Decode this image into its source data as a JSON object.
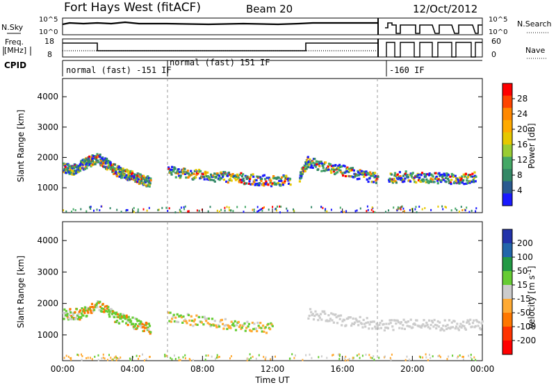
{
  "header": {
    "station": "Fort Hays West (fitACF)",
    "beam": "Beam 20",
    "date": "12/Oct/2012"
  },
  "top_panels": {
    "nsky_label": "N.Sky",
    "nsearch_label": "N.Search",
    "nsky_ticks": [
      "10^5",
      "10^0"
    ],
    "nsky_right_ticks": [
      "10^5",
      "10^0"
    ],
    "freq_label_1": "Freq.",
    "freq_label_2": "[MHz]",
    "freq_ticks": [
      "18",
      "8"
    ],
    "nave_label": "Nave",
    "nave_ticks": [
      "60",
      "0"
    ],
    "cpid_label": "CPID",
    "cpid_segments": [
      {
        "label": "normal (fast) -151 IF",
        "start": 0,
        "end": 6
      },
      {
        "label": "normal (fast) 151 IF",
        "start": 6,
        "end": 18
      },
      {
        "label": "-160 IF",
        "start": 18.5,
        "end": 24
      }
    ]
  },
  "power_colorbar": {
    "title": "Power [dB]",
    "ticks": [
      "28",
      "24",
      "20",
      "16",
      "12",
      "8",
      "4"
    ],
    "colors": [
      "#ff0000",
      "#ff4400",
      "#ff8800",
      "#ffaa00",
      "#e6c800",
      "#99cc33",
      "#44a866",
      "#338866",
      "#2a5a90",
      "#1a1aff"
    ]
  },
  "velocity_colorbar": {
    "title": "Velocity [m s",
    "title_sup": "-1",
    "title_end": "]",
    "ticks": [
      "200",
      "100",
      "50",
      "15",
      "-15",
      "-50",
      "-100",
      "-200"
    ],
    "colors": [
      "#2233aa",
      "#2266aa",
      "#229944",
      "#66cc33",
      "#cccccc",
      "#ffaa33",
      "#ff7700",
      "#ff3300",
      "#ff0000"
    ]
  },
  "time_ticks": [
    "00:00",
    "04:00",
    "08:00",
    "12:00",
    "16:00",
    "20:00",
    "00:00"
  ],
  "x_title": "Time UT",
  "y_title": "Slant Range [km]",
  "y_ticks": [
    "4000",
    "3000",
    "2000",
    "1000"
  ],
  "chart_data": [
    {
      "type": "heatmap",
      "title": "",
      "xlabel": "",
      "ylabel": "Slant Range [km]",
      "xlim": [
        0,
        24
      ],
      "ylim": [
        180,
        4600
      ],
      "colorbar": "Power [dB]",
      "series": [
        {
          "name": "echo band",
          "x": [
            0.0,
            0.5,
            1.0,
            1.5,
            2.0,
            2.5,
            3.0,
            3.5,
            4.0,
            4.5,
            5.0
          ],
          "y": [
            1700,
            1600,
            1750,
            1900,
            2000,
            1800,
            1600,
            1500,
            1400,
            1300,
            1200
          ]
        },
        {
          "name": "echo band",
          "x": [
            6.0,
            7.0,
            8.0,
            9.0,
            10.0,
            11.0,
            12.0,
            13.0
          ],
          "y": [
            1600,
            1500,
            1450,
            1400,
            1350,
            1300,
            1250,
            1300
          ]
        },
        {
          "name": "echo band",
          "x": [
            13.5,
            14.0,
            15.0,
            16.0,
            17.0,
            18.0
          ],
          "y": [
            1400,
            1900,
            1700,
            1600,
            1450,
            1350
          ]
        },
        {
          "name": "echo band",
          "x": [
            18.6,
            19.6,
            20.6,
            21.6,
            22.6,
            23.6
          ],
          "y": [
            1350,
            1400,
            1350,
            1350,
            1300,
            1400
          ]
        }
      ]
    },
    {
      "type": "heatmap",
      "title": "",
      "xlabel": "Time UT",
      "ylabel": "Slant Range [km]",
      "xlim": [
        0,
        24
      ],
      "ylim": [
        180,
        4600
      ],
      "colorbar": "Velocity [m s-1]",
      "series": [
        {
          "name": "echo band",
          "x": [
            0.0,
            1.0,
            2.0,
            3.0,
            4.0,
            5.0
          ],
          "y": [
            1700,
            1700,
            2000,
            1600,
            1400,
            1200
          ]
        },
        {
          "name": "echo band",
          "x": [
            6.0,
            8.0,
            10.0,
            12.0
          ],
          "y": [
            1600,
            1450,
            1350,
            1250
          ]
        },
        {
          "name": "echo band",
          "x": [
            14.0,
            16.0,
            18.0,
            20.0,
            22.0,
            24.0
          ],
          "y": [
            1700,
            1500,
            1350,
            1350,
            1350,
            1350
          ]
        }
      ]
    }
  ]
}
